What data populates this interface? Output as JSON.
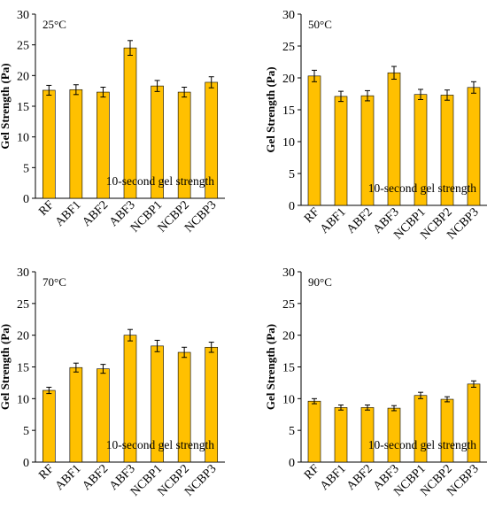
{
  "figure": {
    "ylabel": "Gel Strength (Pa)",
    "annotation": "10-second gel strength"
  },
  "colors": {
    "bar": "#FFC000",
    "bar_edge": "#000000",
    "axis": "#000000"
  },
  "chart_data": [
    {
      "type": "bar",
      "title": "25°C",
      "categories": [
        "RF",
        "ABF1",
        "ABF2",
        "ABF3",
        "NCBP1",
        "NCBP2",
        "NCBP3"
      ],
      "values": [
        17.6,
        17.7,
        17.3,
        24.5,
        18.3,
        17.3,
        18.9
      ],
      "errors": [
        0.8,
        0.8,
        0.8,
        1.2,
        0.9,
        0.8,
        0.9
      ],
      "ylabel": "Gel Strength (Pa)",
      "annotation": "10-second gel strength",
      "ylim": [
        0,
        30
      ],
      "yticks": [
        0,
        5,
        10,
        15,
        20,
        25,
        30
      ]
    },
    {
      "type": "bar",
      "title": "50°C",
      "categories": [
        "RF",
        "ABF1",
        "ABF2",
        "ABF3",
        "NCBP1",
        "NCBP2",
        "NCBP3"
      ],
      "values": [
        20.3,
        17.1,
        17.2,
        20.8,
        17.4,
        17.3,
        18.5
      ],
      "errors": [
        0.9,
        0.8,
        0.8,
        1.0,
        0.8,
        0.8,
        0.9
      ],
      "ylabel": "Gel Strength (Pa)",
      "annotation": "10-second gel strength",
      "ylim": [
        0,
        30
      ],
      "yticks": [
        0,
        5,
        10,
        15,
        20,
        25,
        30
      ]
    },
    {
      "type": "bar",
      "title": "70°C",
      "categories": [
        "RF",
        "ABF1",
        "ABF2",
        "ABF3",
        "NCBP1",
        "NCBP2",
        "NCBP3"
      ],
      "values": [
        11.3,
        14.9,
        14.7,
        20.0,
        18.3,
        17.3,
        18.1
      ],
      "errors": [
        0.5,
        0.7,
        0.7,
        0.9,
        0.9,
        0.8,
        0.8
      ],
      "ylabel": "Gel Strength (Pa)",
      "annotation": "10-second gel strength",
      "ylim": [
        0,
        30
      ],
      "yticks": [
        0,
        5,
        10,
        15,
        20,
        25,
        30
      ]
    },
    {
      "type": "bar",
      "title": "90°C",
      "categories": [
        "RF",
        "ABF1",
        "ABF2",
        "ABF3",
        "NCBP1",
        "NCBP2",
        "NCBP3"
      ],
      "values": [
        9.6,
        8.6,
        8.6,
        8.5,
        10.5,
        9.9,
        12.3
      ],
      "errors": [
        0.4,
        0.4,
        0.4,
        0.4,
        0.5,
        0.4,
        0.5
      ],
      "ylabel": "Gel Strength (Pa)",
      "annotation": "10-second gel strength",
      "ylim": [
        0,
        30
      ],
      "yticks": [
        0,
        5,
        10,
        15,
        20,
        25,
        30
      ]
    }
  ]
}
